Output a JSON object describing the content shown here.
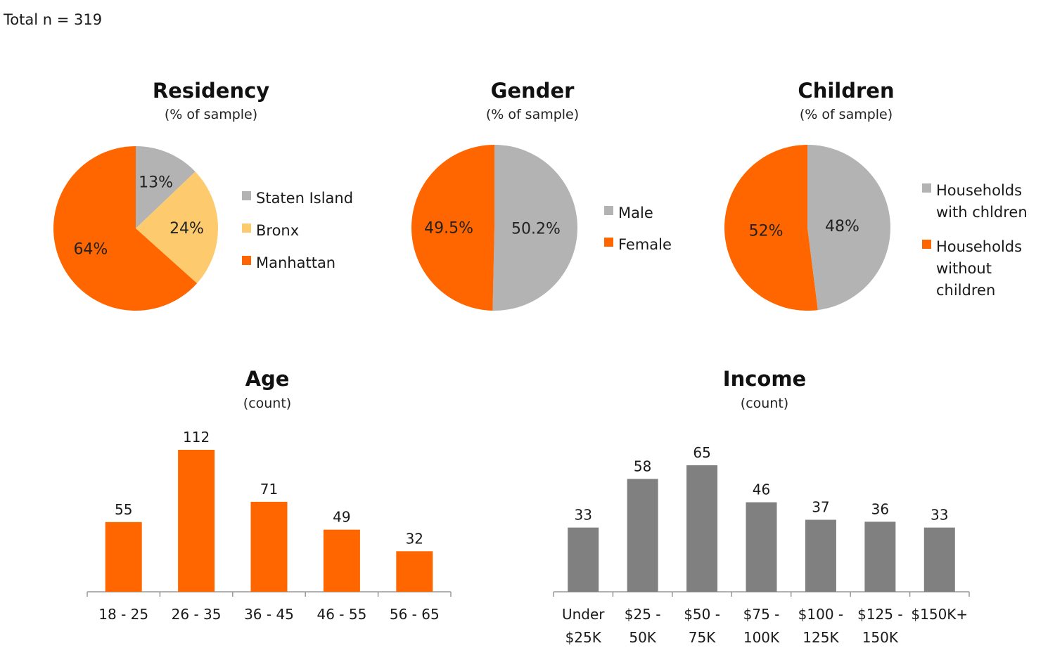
{
  "total_label": "Total n = 319",
  "chart_data": [
    {
      "type": "pie",
      "title": "Residency",
      "subtitle": "(% of sample)",
      "slices": [
        {
          "label": "Staten Island",
          "value": 13,
          "display": "13%",
          "color": "#b3b3b3"
        },
        {
          "label": "Bronx",
          "value": 24,
          "display": "24%",
          "color": "#fdcb6e"
        },
        {
          "label": "Manhattan",
          "value": 64,
          "display": "64%",
          "color": "#ff6600"
        }
      ]
    },
    {
      "type": "pie",
      "title": "Gender",
      "subtitle": "(% of sample)",
      "slices": [
        {
          "label": "Male",
          "value": 50.2,
          "display": "50.2%",
          "color": "#b3b3b3"
        },
        {
          "label": "Female",
          "value": 49.5,
          "display": "49.5%",
          "color": "#ff6600"
        }
      ]
    },
    {
      "type": "pie",
      "title": "Children",
      "subtitle": "(% of sample)",
      "slices": [
        {
          "label": "Households with chldren",
          "legend_lines": [
            "Households",
            "with chldren"
          ],
          "value": 48,
          "display": "48%",
          "color": "#b3b3b3"
        },
        {
          "label": "Households without children",
          "legend_lines": [
            "Households",
            "without",
            "children"
          ],
          "value": 52,
          "display": "52%",
          "color": "#ff6600"
        }
      ]
    },
    {
      "type": "bar",
      "title": "Age",
      "subtitle": "(count)",
      "categories": [
        "18 - 25",
        "26 - 35",
        "36 - 45",
        "46 - 55",
        "56 - 65"
      ],
      "values": [
        55,
        112,
        71,
        49,
        32
      ],
      "color": "#ff6600",
      "ylim": [
        0,
        112
      ]
    },
    {
      "type": "bar",
      "title": "Income",
      "subtitle": "(count)",
      "categories": [
        [
          "Under",
          "$25K"
        ],
        [
          "$25 -",
          "50K"
        ],
        [
          "$50 -",
          "75K"
        ],
        [
          "$75 -",
          "100K"
        ],
        [
          "$100 -",
          "125K"
        ],
        [
          "$125 -",
          "150K"
        ],
        [
          "$150K+"
        ]
      ],
      "values": [
        33,
        58,
        65,
        46,
        37,
        36,
        33
      ],
      "color": "#808080",
      "ylim": [
        0,
        65
      ]
    }
  ]
}
